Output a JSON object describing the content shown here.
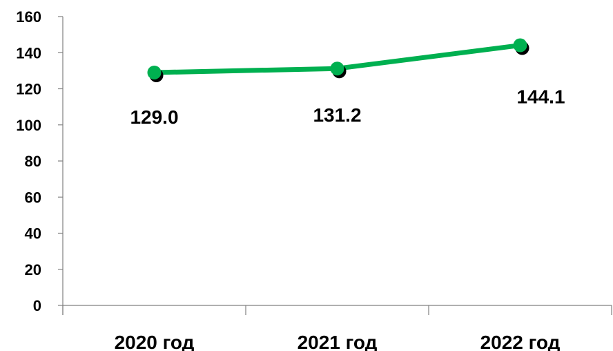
{
  "chart_data": {
    "type": "line",
    "categories": [
      "2020 год",
      "2021 год",
      "2022 год"
    ],
    "series": [
      {
        "values": [
          129.0,
          131.2,
          144.1
        ],
        "data_labels": [
          "129.0",
          "131.2",
          "144.1"
        ],
        "color": "#00b050",
        "marker_color": "#00b050",
        "marker_shadow_color": "#000000"
      }
    ],
    "ylim": [
      0,
      160
    ],
    "yticks": [
      0,
      20,
      40,
      60,
      80,
      100,
      120,
      140,
      160
    ],
    "ytick_labels": [
      "0",
      "20",
      "40",
      "60",
      "80",
      "100",
      "120",
      "140",
      "160"
    ],
    "grid": false,
    "legend": "none",
    "title": "",
    "xlabel": "",
    "ylabel": ""
  }
}
